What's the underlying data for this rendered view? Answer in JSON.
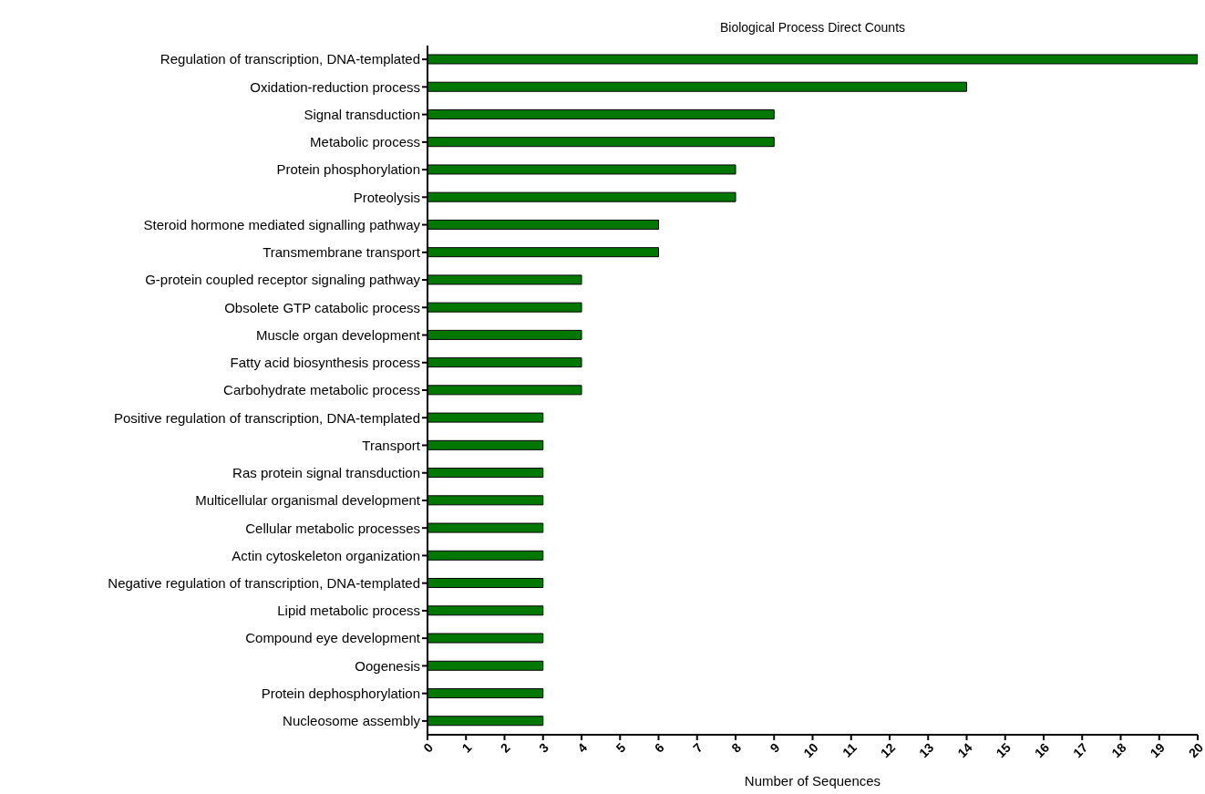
{
  "chart_data": {
    "type": "bar",
    "orientation": "horizontal",
    "title": "Biological Process Direct Counts",
    "xlabel": "Number of Sequences",
    "categories": [
      "Regulation of transcription, DNA-templated",
      "Oxidation-reduction process",
      "Signal transduction",
      "Metabolic process",
      "Protein phosphorylation",
      "Proteolysis",
      "Steroid hormone mediated signalling pathway",
      "Transmembrane transport",
      "G-protein coupled receptor signaling pathway",
      "Obsolete GTP catabolic process",
      "Muscle organ development",
      "Fatty acid biosynthesis process",
      "Carbohydrate metabolic process",
      "Positive regulation of transcription, DNA-templated",
      "Transport",
      "Ras protein signal transduction",
      "Multicellular organismal development",
      "Cellular metabolic processes",
      "Actin cytoskeleton organization",
      "Negative regulation of transcription, DNA-templated",
      "Lipid metabolic process",
      "Compound eye development",
      "Oogenesis",
      "Protein dephosphorylation",
      "Nucleosome assembly"
    ],
    "values": [
      20,
      14,
      9,
      9,
      8,
      8,
      6,
      6,
      4,
      4,
      4,
      4,
      4,
      3,
      3,
      3,
      3,
      3,
      3,
      3,
      3,
      3,
      3,
      3,
      3
    ],
    "color": "#007700",
    "xlim": [
      0,
      20
    ],
    "xticks": [
      0,
      1,
      2,
      3,
      4,
      5,
      6,
      7,
      8,
      9,
      10,
      11,
      12,
      13,
      14,
      15,
      16,
      17,
      18,
      19,
      20
    ],
    "grid": false
  }
}
